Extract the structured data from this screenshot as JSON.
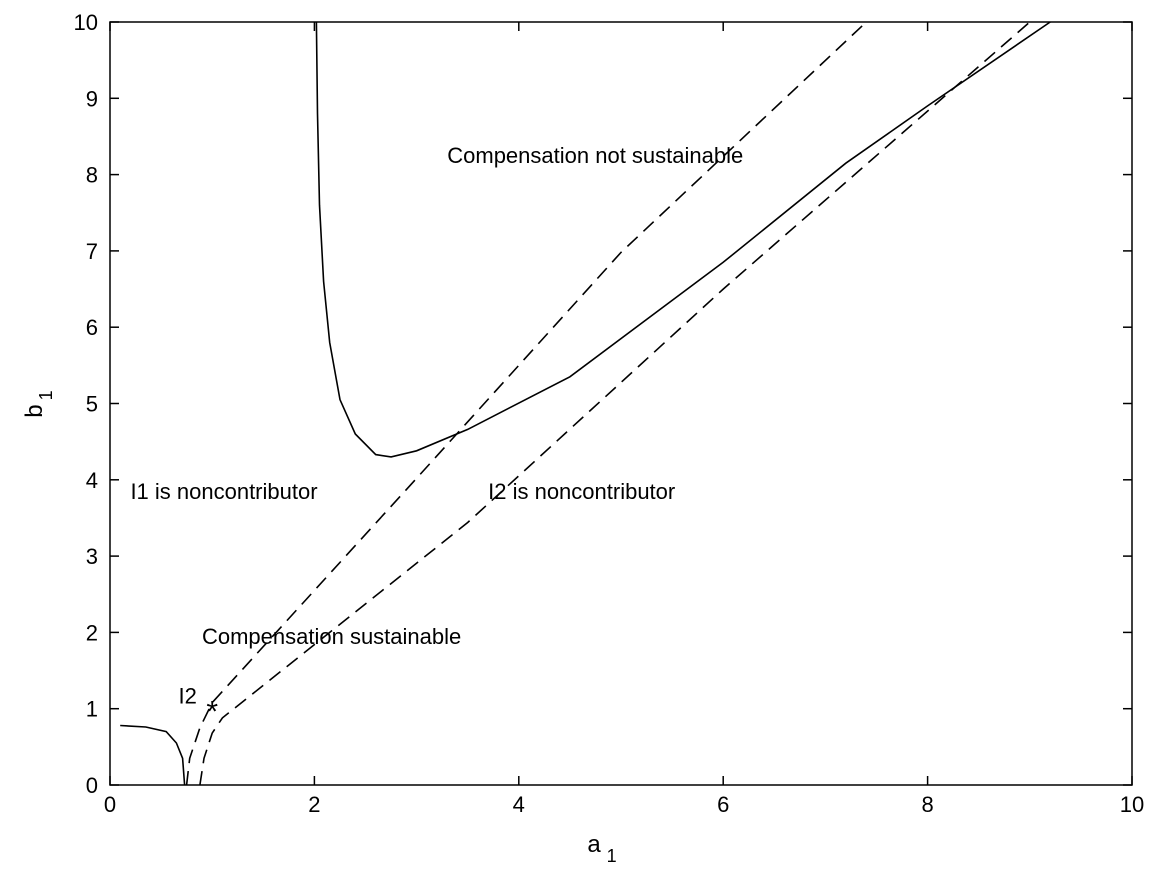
{
  "chart_data": {
    "type": "line",
    "title": "",
    "xlabel": "a",
    "xlabel_sub": "1",
    "ylabel": "b",
    "ylabel_sub": "1",
    "xlim": [
      0,
      10
    ],
    "ylim": [
      0,
      10
    ],
    "xticks": [
      0,
      2,
      4,
      6,
      8,
      10
    ],
    "yticks": [
      0,
      1,
      2,
      3,
      4,
      5,
      6,
      7,
      8,
      9,
      10
    ],
    "xtick_labels": [
      "0",
      "2",
      "4",
      "6",
      "8",
      "10"
    ],
    "ytick_labels": [
      "0",
      "1",
      "2",
      "3",
      "4",
      "5",
      "6",
      "7",
      "8",
      "9",
      "10"
    ],
    "grid": false,
    "series": [
      {
        "style": "solid",
        "color": "#000000",
        "points": [
          [
            2.02,
            10.0
          ],
          [
            2.03,
            8.8
          ],
          [
            2.05,
            7.6
          ],
          [
            2.09,
            6.6
          ],
          [
            2.15,
            5.8
          ],
          [
            2.25,
            5.05
          ],
          [
            2.4,
            4.6
          ],
          [
            2.6,
            4.33
          ],
          [
            2.75,
            4.3
          ],
          [
            3.0,
            4.38
          ],
          [
            3.5,
            4.66
          ],
          [
            4.5,
            5.35
          ],
          [
            6.0,
            6.85
          ],
          [
            7.2,
            8.15
          ],
          [
            8.0,
            8.9
          ],
          [
            9.2,
            10.0
          ]
        ]
      },
      {
        "style": "solid",
        "color": "#000000",
        "points": [
          [
            0.1,
            0.78
          ],
          [
            0.35,
            0.76
          ],
          [
            0.55,
            0.7
          ],
          [
            0.65,
            0.55
          ],
          [
            0.71,
            0.35
          ],
          [
            0.73,
            0.0
          ]
        ]
      },
      {
        "style": "dashed",
        "color": "#000000",
        "points": [
          [
            0.75,
            0.0
          ],
          [
            0.78,
            0.35
          ],
          [
            0.88,
            0.75
          ],
          [
            1.0,
            1.08
          ],
          [
            3.0,
            4.02
          ],
          [
            5.0,
            6.98
          ],
          [
            7.4,
            10.0
          ]
        ]
      },
      {
        "style": "dashed",
        "color": "#000000",
        "points": [
          [
            0.88,
            0.0
          ],
          [
            0.92,
            0.35
          ],
          [
            1.0,
            0.68
          ],
          [
            1.1,
            0.88
          ],
          [
            3.5,
            3.44
          ],
          [
            6.0,
            6.5
          ],
          [
            9.0,
            10.0
          ]
        ]
      }
    ],
    "markers": [
      {
        "label": "*",
        "x": 1.0,
        "y": 1.0
      }
    ],
    "annotations": [
      {
        "text": "Compensation not sustainable",
        "x": 3.3,
        "y": 8.15
      },
      {
        "text": "I1 is noncontributor",
        "x": 0.2,
        "y": 3.75
      },
      {
        "text": "I2 is noncontributor",
        "x": 3.7,
        "y": 3.75
      },
      {
        "text": "Compensation sustainable",
        "x": 0.9,
        "y": 1.85
      },
      {
        "text": "I2",
        "x": 0.67,
        "y": 1.07
      }
    ]
  }
}
